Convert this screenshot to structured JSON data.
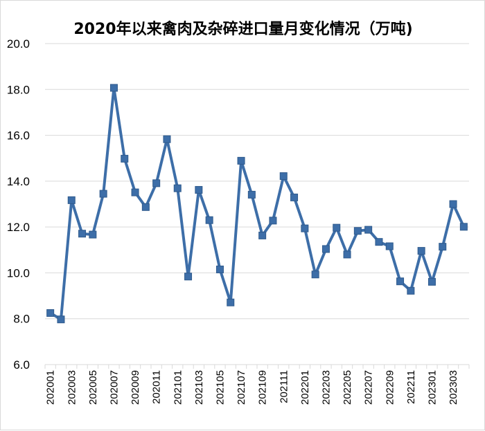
{
  "chart_data": {
    "type": "line",
    "title": "2020年以来禽肉及杂碎进口量月变化情况（万吨)",
    "xlabel": "",
    "ylabel": "",
    "ylim": [
      6.0,
      20.0
    ],
    "yticks": [
      "6.0",
      "8.0",
      "10.0",
      "12.0",
      "14.0",
      "16.0",
      "18.0",
      "20.0"
    ],
    "xtick_labels": [
      "202001",
      "202003",
      "202005",
      "202007",
      "202009",
      "202011",
      "202101",
      "202103",
      "202105",
      "202107",
      "202109",
      "202111",
      "202201",
      "202203",
      "202205",
      "202207",
      "202209",
      "202211",
      "202301",
      "202303"
    ],
    "grid": true,
    "legend": "none",
    "color": "#3d6ea8",
    "categories": [
      "202001",
      "202002",
      "202003",
      "202004",
      "202005",
      "202006",
      "202007",
      "202008",
      "202009",
      "202010",
      "202011",
      "202012",
      "202101",
      "202102",
      "202103",
      "202104",
      "202105",
      "202106",
      "202107",
      "202108",
      "202109",
      "202110",
      "202111",
      "202112",
      "202201",
      "202202",
      "202203",
      "202204",
      "202205",
      "202206",
      "202207",
      "202208",
      "202209",
      "202210",
      "202211",
      "202212",
      "202301",
      "202302",
      "202303",
      "202304"
    ],
    "values": [
      8.25,
      7.97,
      13.17,
      11.71,
      11.67,
      13.45,
      18.07,
      14.98,
      13.51,
      12.87,
      13.91,
      15.83,
      13.69,
      9.84,
      13.62,
      12.3,
      10.15,
      8.71,
      14.89,
      13.41,
      11.63,
      12.28,
      14.22,
      13.29,
      11.94,
      9.93,
      11.04,
      11.97,
      10.8,
      11.83,
      11.88,
      11.35,
      11.16,
      9.63,
      9.22,
      10.96,
      9.61,
      11.14,
      13.0,
      12.01
    ]
  }
}
